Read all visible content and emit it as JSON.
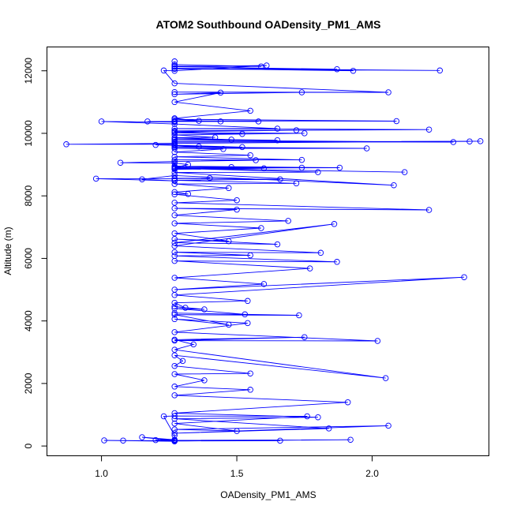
{
  "chart_data": {
    "type": "scatter",
    "title": "ATOM2 Southbound OADensity_PM1_AMS",
    "xlabel": "OADensity_PM1_AMS",
    "ylabel": "Altitude (m)",
    "xlim": [
      0.8,
      2.43
    ],
    "ylim": [
      -300,
      12750
    ],
    "xticks": [
      1.0,
      1.5,
      2.0
    ],
    "xtick_labels": [
      "1.0",
      "1.5",
      "2.0"
    ],
    "yticks": [
      0,
      2000,
      4000,
      6000,
      8000,
      10000,
      12000
    ],
    "ytick_labels": [
      "0",
      "2000",
      "4000",
      "6000",
      "8000",
      "10000",
      "12000"
    ],
    "grid": false,
    "connected": true,
    "series": [
      {
        "name": "OADensity_PM1_AMS",
        "color": "#0000ff",
        "points": [
          [
            1.27,
            150
          ],
          [
            1.01,
            180
          ],
          [
            1.27,
            160
          ],
          [
            1.08,
            175
          ],
          [
            1.27,
            170
          ],
          [
            1.15,
            280
          ],
          [
            1.27,
            200
          ],
          [
            1.2,
            190
          ],
          [
            1.27,
            180
          ],
          [
            1.92,
            200
          ],
          [
            1.27,
            160
          ],
          [
            1.66,
            170
          ],
          [
            1.27,
            180
          ],
          [
            1.27,
            340
          ],
          [
            1.23,
            950
          ],
          [
            1.27,
            960
          ],
          [
            1.76,
            950
          ],
          [
            1.27,
            720
          ],
          [
            1.5,
            480
          ],
          [
            1.27,
            530
          ],
          [
            2.06,
            650
          ],
          [
            1.27,
            410
          ],
          [
            1.84,
            560
          ],
          [
            1.27,
            870
          ],
          [
            1.8,
            920
          ],
          [
            1.27,
            1050
          ],
          [
            1.91,
            1400
          ],
          [
            1.27,
            1620
          ],
          [
            1.55,
            1800
          ],
          [
            1.27,
            1900
          ],
          [
            1.38,
            2100
          ],
          [
            1.27,
            2300
          ],
          [
            1.55,
            2320
          ],
          [
            1.27,
            2560
          ],
          [
            1.3,
            2720
          ],
          [
            1.27,
            2900
          ],
          [
            2.05,
            2170
          ],
          [
            1.27,
            3080
          ],
          [
            1.34,
            3250
          ],
          [
            1.27,
            3400
          ],
          [
            1.75,
            3480
          ],
          [
            1.27,
            3370
          ],
          [
            2.02,
            3360
          ],
          [
            1.27,
            3640
          ],
          [
            1.54,
            3930
          ],
          [
            1.27,
            4060
          ],
          [
            1.47,
            3880
          ],
          [
            1.27,
            4200
          ],
          [
            1.73,
            4180
          ],
          [
            1.27,
            4250
          ],
          [
            1.53,
            4210
          ],
          [
            1.27,
            4400
          ],
          [
            1.38,
            4370
          ],
          [
            1.27,
            4460
          ],
          [
            1.31,
            4420
          ],
          [
            1.27,
            4580
          ],
          [
            1.54,
            4640
          ],
          [
            1.27,
            4830
          ],
          [
            2.34,
            5400
          ],
          [
            1.27,
            5000
          ],
          [
            1.6,
            5180
          ],
          [
            1.27,
            5380
          ],
          [
            1.77,
            5680
          ],
          [
            1.27,
            5920
          ],
          [
            1.87,
            5890
          ],
          [
            1.27,
            6080
          ],
          [
            1.55,
            6100
          ],
          [
            1.27,
            6200
          ],
          [
            1.81,
            6180
          ],
          [
            1.27,
            6400
          ],
          [
            1.86,
            7100
          ],
          [
            1.27,
            6500
          ],
          [
            1.65,
            6450
          ],
          [
            1.27,
            6620
          ],
          [
            1.47,
            6550
          ],
          [
            1.27,
            6800
          ],
          [
            1.59,
            6970
          ],
          [
            1.27,
            7120
          ],
          [
            1.69,
            7200
          ],
          [
            1.27,
            7380
          ],
          [
            1.5,
            7560
          ],
          [
            1.27,
            7600
          ],
          [
            2.21,
            7550
          ],
          [
            1.27,
            7780
          ],
          [
            1.5,
            7860
          ],
          [
            1.27,
            8050
          ],
          [
            1.32,
            8060
          ],
          [
            1.27,
            8120
          ],
          [
            1.47,
            8250
          ],
          [
            1.27,
            8380
          ],
          [
            1.72,
            8400
          ],
          [
            1.27,
            8500
          ],
          [
            1.66,
            8530
          ],
          [
            1.27,
            8560
          ],
          [
            1.4,
            8570
          ],
          [
            1.27,
            8550
          ],
          [
            0.98,
            8550
          ],
          [
            1.27,
            8480
          ],
          [
            1.15,
            8530
          ],
          [
            1.27,
            8650
          ],
          [
            2.08,
            8340
          ],
          [
            1.27,
            8750
          ],
          [
            1.8,
            8760
          ],
          [
            1.27,
            8880
          ],
          [
            2.12,
            8760
          ],
          [
            1.27,
            8880
          ],
          [
            1.88,
            8900
          ],
          [
            1.27,
            8950
          ],
          [
            1.74,
            8900
          ],
          [
            1.27,
            8920
          ],
          [
            1.6,
            8880
          ],
          [
            1.27,
            8850
          ],
          [
            1.48,
            8920
          ],
          [
            1.27,
            8900
          ],
          [
            1.32,
            9000
          ],
          [
            1.27,
            9050
          ],
          [
            1.07,
            9060
          ],
          [
            1.27,
            9100
          ],
          [
            1.57,
            9140
          ],
          [
            1.27,
            9150
          ],
          [
            1.74,
            9150
          ],
          [
            1.27,
            9250
          ],
          [
            1.55,
            9300
          ],
          [
            1.27,
            9400
          ],
          [
            1.45,
            9500
          ],
          [
            1.27,
            9520
          ],
          [
            1.98,
            9520
          ],
          [
            1.27,
            9560
          ],
          [
            1.36,
            9580
          ],
          [
            1.27,
            9600
          ],
          [
            1.52,
            9560
          ],
          [
            1.27,
            9620
          ],
          [
            1.2,
            9630
          ],
          [
            1.27,
            9650
          ],
          [
            0.87,
            9650
          ],
          [
            1.27,
            9680
          ],
          [
            2.4,
            9750
          ],
          [
            1.27,
            9720
          ],
          [
            2.36,
            9740
          ],
          [
            1.27,
            9730
          ],
          [
            2.3,
            9720
          ],
          [
            1.27,
            9780
          ],
          [
            1.65,
            9780
          ],
          [
            1.27,
            9820
          ],
          [
            1.48,
            9800
          ],
          [
            1.27,
            9860
          ],
          [
            1.42,
            9870
          ],
          [
            1.27,
            9950
          ],
          [
            1.75,
            10000
          ],
          [
            1.27,
            10020
          ],
          [
            1.52,
            9980
          ],
          [
            1.27,
            10050
          ],
          [
            1.72,
            10100
          ],
          [
            1.27,
            10080
          ],
          [
            2.21,
            10120
          ],
          [
            1.27,
            10150
          ],
          [
            1.65,
            10150
          ],
          [
            1.27,
            10300
          ],
          [
            1.0,
            10380
          ],
          [
            1.27,
            10360
          ],
          [
            1.17,
            10380
          ],
          [
            1.27,
            10380
          ],
          [
            1.44,
            10380
          ],
          [
            1.27,
            10390
          ],
          [
            1.58,
            10380
          ],
          [
            1.27,
            10400
          ],
          [
            2.09,
            10390
          ],
          [
            1.27,
            10450
          ],
          [
            1.36,
            10400
          ],
          [
            1.27,
            10480
          ],
          [
            1.55,
            10720
          ],
          [
            1.27,
            11000
          ],
          [
            1.44,
            11300
          ],
          [
            1.27,
            11250
          ],
          [
            1.74,
            11310
          ],
          [
            1.27,
            11320
          ],
          [
            2.06,
            11310
          ],
          [
            1.27,
            11600
          ],
          [
            1.23,
            12010
          ],
          [
            1.27,
            12000
          ],
          [
            1.61,
            12170
          ],
          [
            1.27,
            12130
          ],
          [
            1.87,
            12050
          ],
          [
            1.27,
            12060
          ],
          [
            2.25,
            12010
          ],
          [
            1.27,
            12080
          ],
          [
            1.93,
            12000
          ],
          [
            1.27,
            12150
          ],
          [
            1.59,
            12140
          ],
          [
            1.27,
            12200
          ],
          [
            1.27,
            12300
          ]
        ]
      }
    ]
  }
}
